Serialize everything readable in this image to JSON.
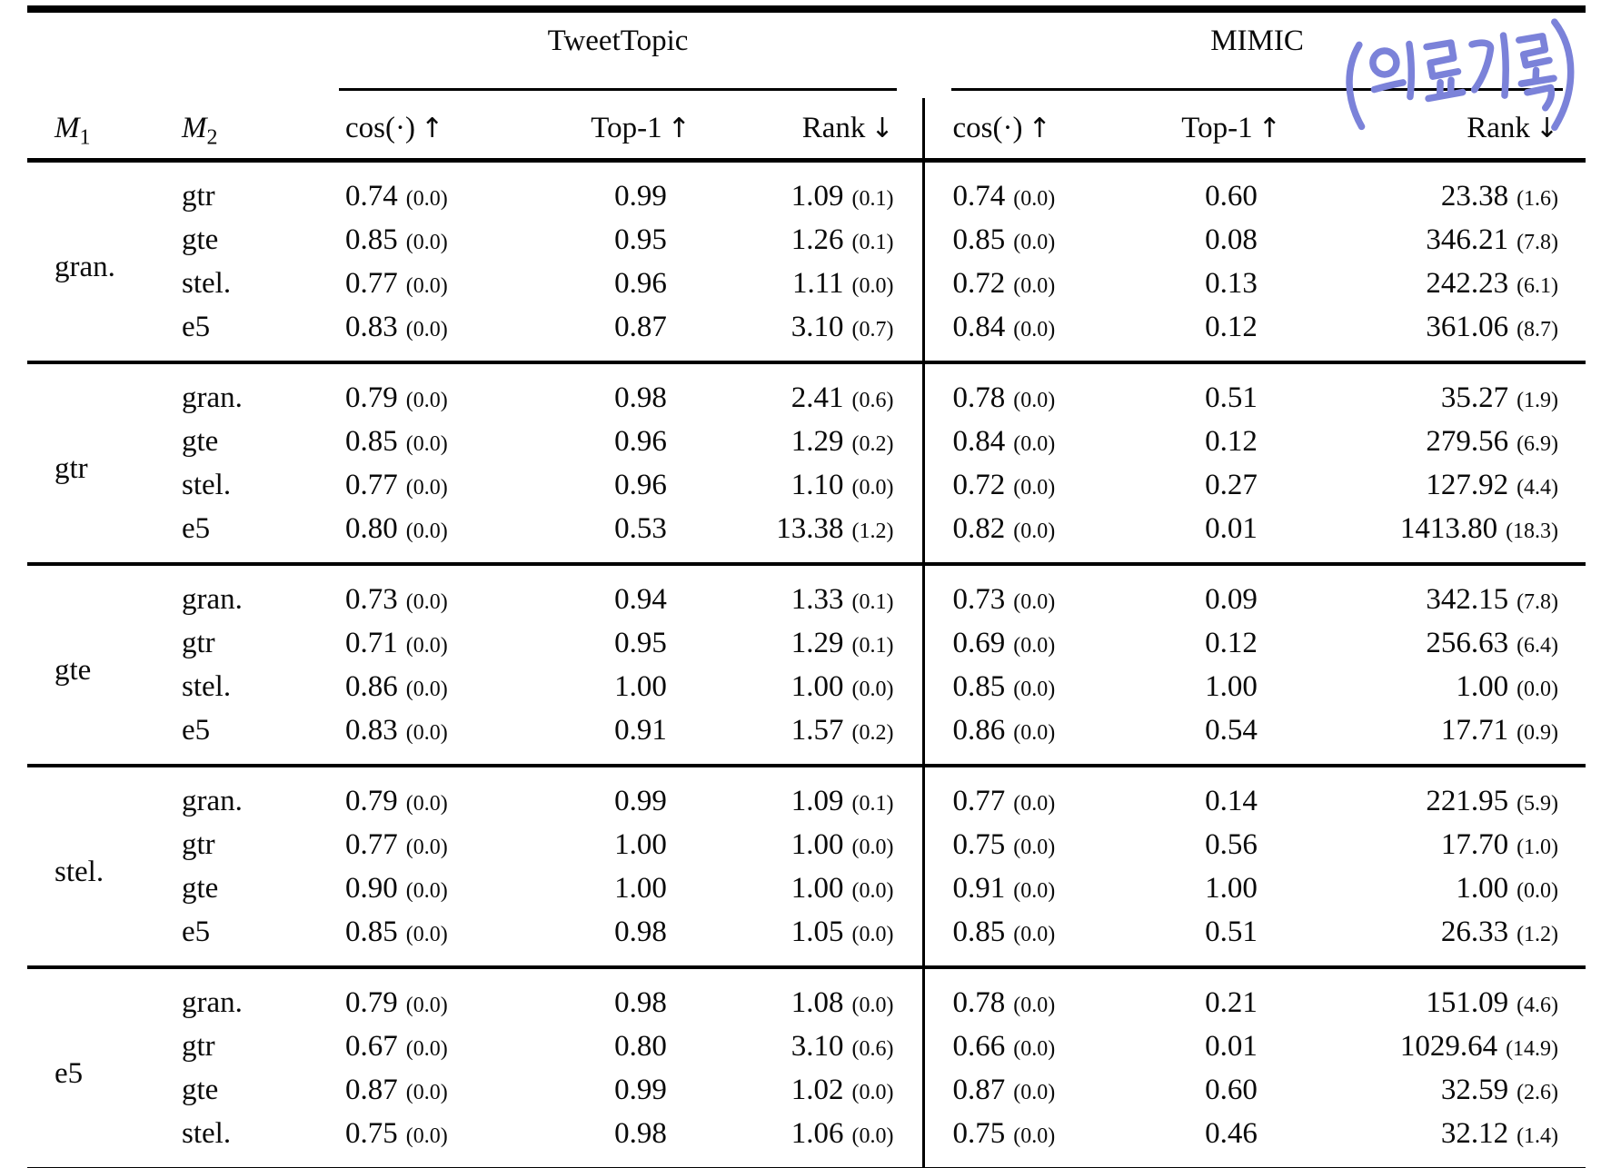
{
  "page": {
    "background": "#ffffff",
    "text_color": "#0a0a0a",
    "rule_color": "#000000"
  },
  "annotation": {
    "text": "(의료기록)",
    "color": "#7b82d9",
    "meaning_note_visible_text_only": "(의료기록)"
  },
  "table": {
    "col_groups": [
      {
        "label": "TweetTopic"
      },
      {
        "label": "MIMIC"
      }
    ],
    "m_headers": [
      {
        "base": "M",
        "sub": "1"
      },
      {
        "base": "M",
        "sub": "2"
      }
    ],
    "metric_headers": [
      {
        "label": "cos(·)",
        "arrow": "↑"
      },
      {
        "label": "Top-1",
        "arrow": "↑"
      },
      {
        "label": "Rank",
        "arrow": "↓"
      }
    ],
    "groups": [
      {
        "m1": "gran.",
        "rows": [
          {
            "m2": "gtr",
            "tt": [
              "0.74",
              "(0.0)",
              "0.99",
              "1.09",
              "(0.1)"
            ],
            "mimic": [
              "0.74",
              "(0.0)",
              "0.60",
              "23.38",
              "(1.6)"
            ]
          },
          {
            "m2": "gte",
            "tt": [
              "0.85",
              "(0.0)",
              "0.95",
              "1.26",
              "(0.1)"
            ],
            "mimic": [
              "0.85",
              "(0.0)",
              "0.08",
              "346.21",
              "(7.8)"
            ]
          },
          {
            "m2": "stel.",
            "tt": [
              "0.77",
              "(0.0)",
              "0.96",
              "1.11",
              "(0.0)"
            ],
            "mimic": [
              "0.72",
              "(0.0)",
              "0.13",
              "242.23",
              "(6.1)"
            ]
          },
          {
            "m2": "e5",
            "tt": [
              "0.83",
              "(0.0)",
              "0.87",
              "3.10",
              "(0.7)"
            ],
            "mimic": [
              "0.84",
              "(0.0)",
              "0.12",
              "361.06",
              "(8.7)"
            ]
          }
        ]
      },
      {
        "m1": "gtr",
        "rows": [
          {
            "m2": "gran.",
            "tt": [
              "0.79",
              "(0.0)",
              "0.98",
              "2.41",
              "(0.6)"
            ],
            "mimic": [
              "0.78",
              "(0.0)",
              "0.51",
              "35.27",
              "(1.9)"
            ]
          },
          {
            "m2": "gte",
            "tt": [
              "0.85",
              "(0.0)",
              "0.96",
              "1.29",
              "(0.2)"
            ],
            "mimic": [
              "0.84",
              "(0.0)",
              "0.12",
              "279.56",
              "(6.9)"
            ]
          },
          {
            "m2": "stel.",
            "tt": [
              "0.77",
              "(0.0)",
              "0.96",
              "1.10",
              "(0.0)"
            ],
            "mimic": [
              "0.72",
              "(0.0)",
              "0.27",
              "127.92",
              "(4.4)"
            ]
          },
          {
            "m2": "e5",
            "tt": [
              "0.80",
              "(0.0)",
              "0.53",
              "13.38",
              "(1.2)"
            ],
            "mimic": [
              "0.82",
              "(0.0)",
              "0.01",
              "1413.80",
              "(18.3)"
            ]
          }
        ]
      },
      {
        "m1": "gte",
        "rows": [
          {
            "m2": "gran.",
            "tt": [
              "0.73",
              "(0.0)",
              "0.94",
              "1.33",
              "(0.1)"
            ],
            "mimic": [
              "0.73",
              "(0.0)",
              "0.09",
              "342.15",
              "(7.8)"
            ]
          },
          {
            "m2": "gtr",
            "tt": [
              "0.71",
              "(0.0)",
              "0.95",
              "1.29",
              "(0.1)"
            ],
            "mimic": [
              "0.69",
              "(0.0)",
              "0.12",
              "256.63",
              "(6.4)"
            ]
          },
          {
            "m2": "stel.",
            "tt": [
              "0.86",
              "(0.0)",
              "1.00",
              "1.00",
              "(0.0)"
            ],
            "mimic": [
              "0.85",
              "(0.0)",
              "1.00",
              "1.00",
              "(0.0)"
            ]
          },
          {
            "m2": "e5",
            "tt": [
              "0.83",
              "(0.0)",
              "0.91",
              "1.57",
              "(0.2)"
            ],
            "mimic": [
              "0.86",
              "(0.0)",
              "0.54",
              "17.71",
              "(0.9)"
            ]
          }
        ]
      },
      {
        "m1": "stel.",
        "rows": [
          {
            "m2": "gran.",
            "tt": [
              "0.79",
              "(0.0)",
              "0.99",
              "1.09",
              "(0.1)"
            ],
            "mimic": [
              "0.77",
              "(0.0)",
              "0.14",
              "221.95",
              "(5.9)"
            ]
          },
          {
            "m2": "gtr",
            "tt": [
              "0.77",
              "(0.0)",
              "1.00",
              "1.00",
              "(0.0)"
            ],
            "mimic": [
              "0.75",
              "(0.0)",
              "0.56",
              "17.70",
              "(1.0)"
            ]
          },
          {
            "m2": "gte",
            "tt": [
              "0.90",
              "(0.0)",
              "1.00",
              "1.00",
              "(0.0)"
            ],
            "mimic": [
              "0.91",
              "(0.0)",
              "1.00",
              "1.00",
              "(0.0)"
            ]
          },
          {
            "m2": "e5",
            "tt": [
              "0.85",
              "(0.0)",
              "0.98",
              "1.05",
              "(0.0)"
            ],
            "mimic": [
              "0.85",
              "(0.0)",
              "0.51",
              "26.33",
              "(1.2)"
            ]
          }
        ]
      },
      {
        "m1": "e5",
        "rows": [
          {
            "m2": "gran.",
            "tt": [
              "0.79",
              "(0.0)",
              "0.98",
              "1.08",
              "(0.0)"
            ],
            "mimic": [
              "0.78",
              "(0.0)",
              "0.21",
              "151.09",
              "(4.6)"
            ]
          },
          {
            "m2": "gtr",
            "tt": [
              "0.67",
              "(0.0)",
              "0.80",
              "3.10",
              "(0.6)"
            ],
            "mimic": [
              "0.66",
              "(0.0)",
              "0.01",
              "1029.64",
              "(14.9)"
            ]
          },
          {
            "m2": "gte",
            "tt": [
              "0.87",
              "(0.0)",
              "0.99",
              "1.02",
              "(0.0)"
            ],
            "mimic": [
              "0.87",
              "(0.0)",
              "0.60",
              "32.59",
              "(2.6)"
            ]
          },
          {
            "m2": "stel.",
            "tt": [
              "0.75",
              "(0.0)",
              "0.98",
              "1.06",
              "(0.0)"
            ],
            "mimic": [
              "0.75",
              "(0.0)",
              "0.46",
              "32.12",
              "(1.4)"
            ]
          }
        ]
      }
    ]
  }
}
